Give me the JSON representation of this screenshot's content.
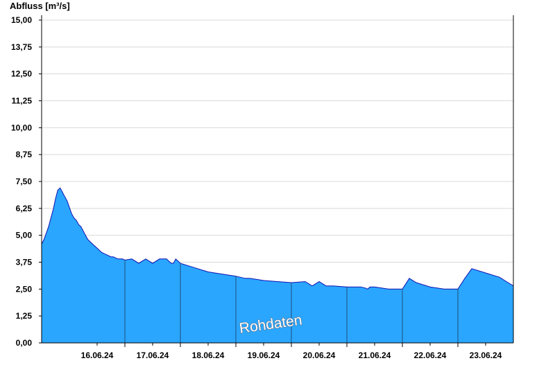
{
  "chart_data": {
    "type": "area",
    "ylabel": "Abfluss [m³/s]",
    "watermark": "Rohdaten",
    "ylim": [
      0,
      15
    ],
    "xlim": [
      "2024-06-15T12:00",
      "2024-06-23T24:00"
    ],
    "y_ticks": [
      "0,00",
      "1,25",
      "2,50",
      "3,75",
      "5,00",
      "6,25",
      "7,50",
      "8,75",
      "10,00",
      "11,25",
      "12,50",
      "13,75",
      "15,00"
    ],
    "x_tick_labels": [
      "16.06.24",
      "17.06.24",
      "18.06.24",
      "19.06.24",
      "20.06.24",
      "21.06.24",
      "22.06.24",
      "23.06.24"
    ],
    "grid": true,
    "colors": {
      "fill": "#2aa6ff",
      "line": "#1010b0",
      "grid": "#d8d8d8",
      "day_line": "#1e4e7a"
    },
    "series": [
      {
        "x": [
          "2024-06-15T12:00",
          "2024-06-15T13:00",
          "2024-06-15T14:00",
          "2024-06-15T15:00",
          "2024-06-15T16:00",
          "2024-06-15T17:00",
          "2024-06-15T18:00",
          "2024-06-15T19:00",
          "2024-06-15T20:00",
          "2024-06-15T21:00",
          "2024-06-15T22:00",
          "2024-06-15T23:00",
          "2024-06-16T00:00",
          "2024-06-16T01:00",
          "2024-06-16T02:00",
          "2024-06-16T03:00",
          "2024-06-16T04:00",
          "2024-06-16T05:00",
          "2024-06-16T06:00",
          "2024-06-16T07:00",
          "2024-06-16T08:00",
          "2024-06-16T09:00",
          "2024-06-16T10:00",
          "2024-06-16T11:00",
          "2024-06-16T12:00",
          "2024-06-16T13:00",
          "2024-06-16T14:00",
          "2024-06-16T15:00",
          "2024-06-16T16:00",
          "2024-06-16T17:00",
          "2024-06-16T18:00",
          "2024-06-16T19:00",
          "2024-06-16T20:00",
          "2024-06-16T21:00",
          "2024-06-16T22:00",
          "2024-06-16T23:00",
          "2024-06-17T00:00",
          "2024-06-17T03:00",
          "2024-06-17T06:00",
          "2024-06-17T09:00",
          "2024-06-17T12:00",
          "2024-06-17T15:00",
          "2024-06-17T18:00",
          "2024-06-17T20:00",
          "2024-06-17T21:00",
          "2024-06-17T22:00",
          "2024-06-18T00:00",
          "2024-06-18T06:00",
          "2024-06-18T12:00",
          "2024-06-18T18:00",
          "2024-06-19T00:00",
          "2024-06-19T04:00",
          "2024-06-19T06:00",
          "2024-06-19T12:00",
          "2024-06-19T18:00",
          "2024-06-20T00:00",
          "2024-06-20T06:00",
          "2024-06-20T09:00",
          "2024-06-20T12:00",
          "2024-06-20T15:00",
          "2024-06-20T18:00",
          "2024-06-21T00:00",
          "2024-06-21T06:00",
          "2024-06-21T08:00",
          "2024-06-21T09:00",
          "2024-06-21T10:00",
          "2024-06-21T12:00",
          "2024-06-21T18:00",
          "2024-06-22T00:00",
          "2024-06-22T03:00",
          "2024-06-22T06:00",
          "2024-06-22T12:00",
          "2024-06-22T18:00",
          "2024-06-23T00:00",
          "2024-06-23T03:00",
          "2024-06-23T06:00",
          "2024-06-23T12:00",
          "2024-06-23T18:00",
          "2024-06-23T21:00",
          "2024-06-23T24:00"
        ],
        "values": [
          4.6,
          4.8,
          5.1,
          5.4,
          5.8,
          6.2,
          6.7,
          7.1,
          7.2,
          7.0,
          6.8,
          6.6,
          6.3,
          6.0,
          5.8,
          5.7,
          5.5,
          5.4,
          5.2,
          5.0,
          4.8,
          4.7,
          4.6,
          4.5,
          4.4,
          4.3,
          4.2,
          4.15,
          4.1,
          4.05,
          4.0,
          4.0,
          3.95,
          3.9,
          3.9,
          3.9,
          3.85,
          3.9,
          3.7,
          3.9,
          3.7,
          3.9,
          3.9,
          3.7,
          3.7,
          3.9,
          3.7,
          3.5,
          3.3,
          3.2,
          3.1,
          3.0,
          3.0,
          2.9,
          2.85,
          2.8,
          2.85,
          2.65,
          2.85,
          2.65,
          2.65,
          2.6,
          2.6,
          2.55,
          2.5,
          2.6,
          2.6,
          2.5,
          2.5,
          3.0,
          2.8,
          2.6,
          2.5,
          2.5,
          3.0,
          3.45,
          3.25,
          3.05,
          2.85,
          2.65
        ]
      }
    ]
  }
}
